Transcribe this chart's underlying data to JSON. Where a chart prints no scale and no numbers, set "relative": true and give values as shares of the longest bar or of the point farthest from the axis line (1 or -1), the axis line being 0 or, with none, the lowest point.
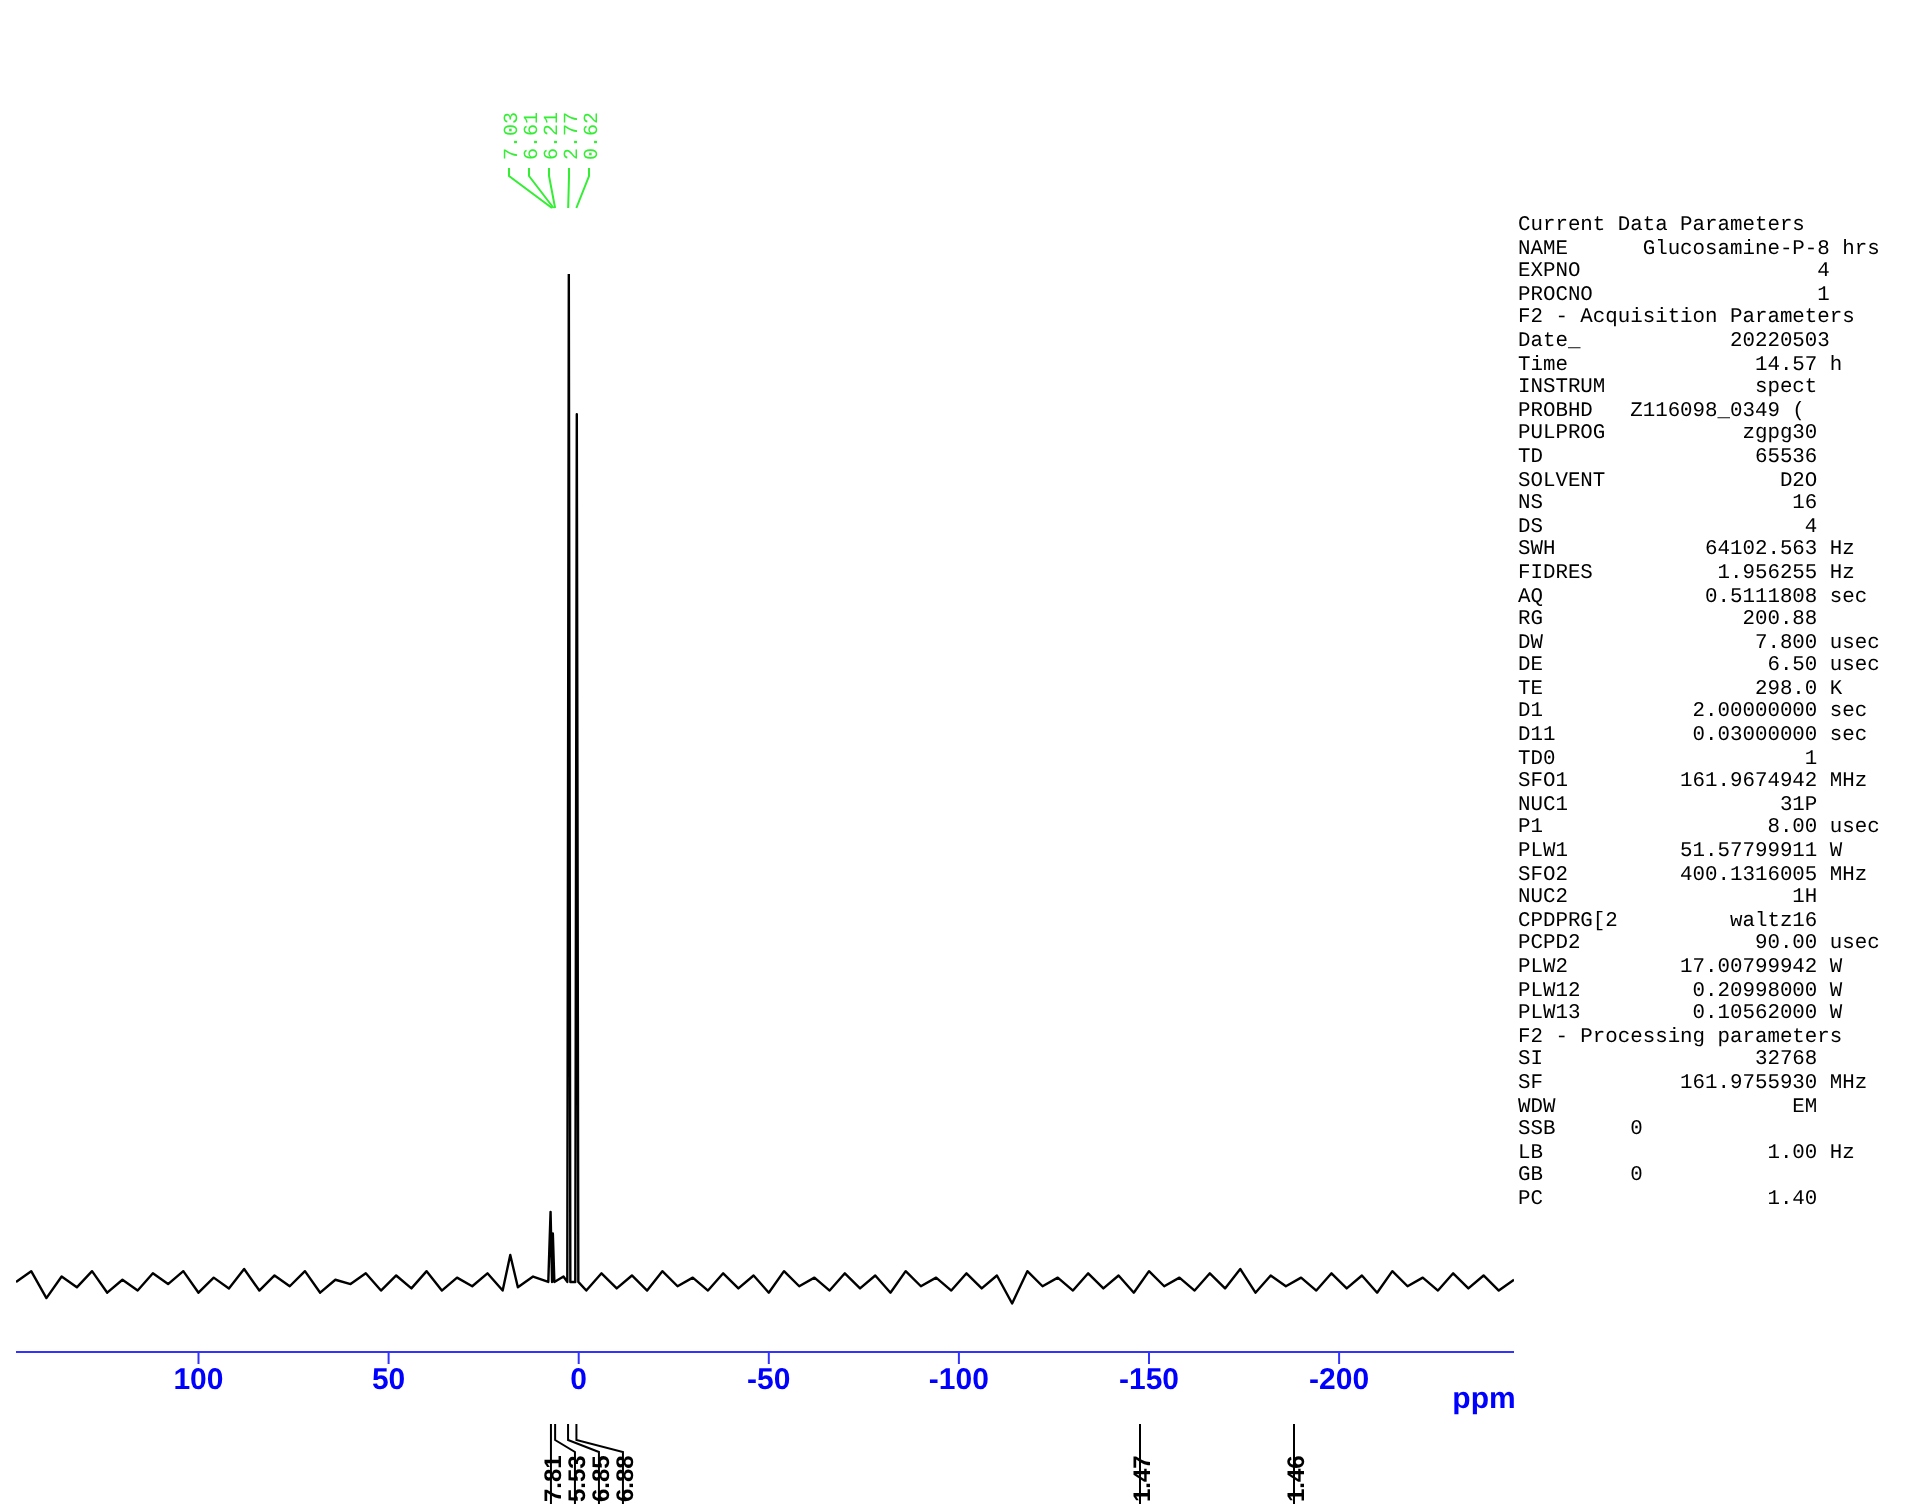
{
  "chart_data": {
    "type": "line",
    "relative": true,
    "xlabel": "ppm",
    "xlim": [
      148,
      -246
    ],
    "xticks": [
      100,
      50,
      0,
      -50,
      -100,
      -150,
      -200
    ],
    "x": [
      148,
      144,
      140,
      136,
      132,
      128,
      124,
      120,
      116,
      112,
      108,
      104,
      100,
      96,
      92,
      88,
      84,
      80,
      76,
      72,
      68,
      64,
      60,
      56,
      52,
      48,
      44,
      40,
      36,
      32,
      28,
      24,
      20,
      18,
      16,
      12,
      8,
      7.4,
      7.0,
      6.8,
      6.4,
      4,
      3.0,
      2.6,
      2.2,
      0.9,
      0.5,
      0.1,
      -2,
      -6,
      -10,
      -14,
      -18,
      -22,
      -26,
      -30,
      -34,
      -38,
      -42,
      -46,
      -50,
      -54,
      -58,
      -62,
      -66,
      -70,
      -74,
      -78,
      -82,
      -86,
      -90,
      -94,
      -98,
      -102,
      -106,
      -110,
      -114,
      -118,
      -122,
      -126,
      -130,
      -134,
      -138,
      -142,
      -146,
      -150,
      -154,
      -158,
      -162,
      -166,
      -170,
      -174,
      -178,
      -182,
      -186,
      -190,
      -194,
      -198,
      -202,
      -206,
      -210,
      -214,
      -218,
      -222,
      -226,
      -230,
      -234,
      -238,
      -242,
      -246
    ],
    "series": [
      {
        "color": "#000000",
        "values": [
          0.065,
          0.075,
          0.05,
          0.07,
          0.06,
          0.075,
          0.055,
          0.067,
          0.057,
          0.073,
          0.063,
          0.075,
          0.055,
          0.069,
          0.059,
          0.077,
          0.057,
          0.071,
          0.061,
          0.075,
          0.055,
          0.067,
          0.063,
          0.073,
          0.057,
          0.071,
          0.059,
          0.075,
          0.057,
          0.069,
          0.061,
          0.073,
          0.057,
          0.09,
          0.06,
          0.07,
          0.065,
          0.13,
          0.065,
          0.11,
          0.065,
          0.07,
          0.065,
          1,
          0.065,
          0.065,
          0.87,
          0.065,
          0.057,
          0.073,
          0.059,
          0.071,
          0.057,
          0.075,
          0.061,
          0.069,
          0.057,
          0.073,
          0.059,
          0.071,
          0.055,
          0.075,
          0.061,
          0.069,
          0.057,
          0.073,
          0.059,
          0.071,
          0.055,
          0.075,
          0.061,
          0.069,
          0.057,
          0.073,
          0.059,
          0.071,
          0.045,
          0.075,
          0.061,
          0.069,
          0.057,
          0.073,
          0.059,
          0.071,
          0.055,
          0.075,
          0.061,
          0.069,
          0.057,
          0.073,
          0.059,
          0.077,
          0.055,
          0.071,
          0.061,
          0.069,
          0.057,
          0.073,
          0.059,
          0.071,
          0.055,
          0.075,
          0.061,
          0.069,
          0.057,
          0.073,
          0.059,
          0.071,
          0.057,
          0.067
        ]
      }
    ],
    "annotations": [
      {
        "text": "7.03",
        "x": 7.03
      },
      {
        "text": "6.61",
        "x": 6.61
      },
      {
        "text": "6.21",
        "x": 6.21
      },
      {
        "text": "2.77",
        "x": 2.77
      },
      {
        "text": "0.62",
        "x": 0.62
      },
      {
        "text": "7.81",
        "x": 7.3
      },
      {
        "text": "5.53",
        "x": 6.2
      },
      {
        "text": "6.85",
        "x": 2.8
      },
      {
        "text": "6.88",
        "x": 0.6
      },
      "1.47",
      "1.46",
      "Current Data Parameters",
      "NAME      Glucosamine-P-8 hrs",
      "EXPNO                   4",
      "PROCNO                  1",
      "F2 - Acquisition Parameters",
      "Date_            20220503",
      "Time               14.57 h",
      "INSTRUM            spect",
      "PROBHD   Z116098_0349 (",
      "PULPROG           zgpg30",
      "TD                 65536",
      "SOLVENT              D2O",
      "NS                    16",
      "DS                     4",
      "SWH            64102.563 Hz",
      "FIDRES          1.956255 Hz",
      "AQ             0.5111808 sec",
      "RG                200.88",
      "DW                 7.800 usec",
      "DE                  6.50 usec",
      "TE                 298.0 K",
      "D1            2.00000000 sec",
      "D11           0.03000000 sec",
      "TD0                    1",
      "SFO1         161.9674942 MHz",
      "NUC1                 31P",
      "P1                  8.00 usec",
      "PLW1         51.57799911 W",
      "SFO2         400.1316005 MHz",
      "NUC2                  1H",
      "CPDPRG[2         waltz16",
      "PCPD2              90.00 usec",
      "PLW2         17.00799942 W",
      "PLW12         0.20998000 W",
      "PLW13         0.10562000 W",
      "F2 - Processing parameters",
      "SI                 32768",
      "SF           161.9755930 MHz",
      "WDW                   EM",
      "SSB      0",
      "LB                  1.00 Hz",
      "GB       0",
      "PC                  1.40"
    ]
  }
}
